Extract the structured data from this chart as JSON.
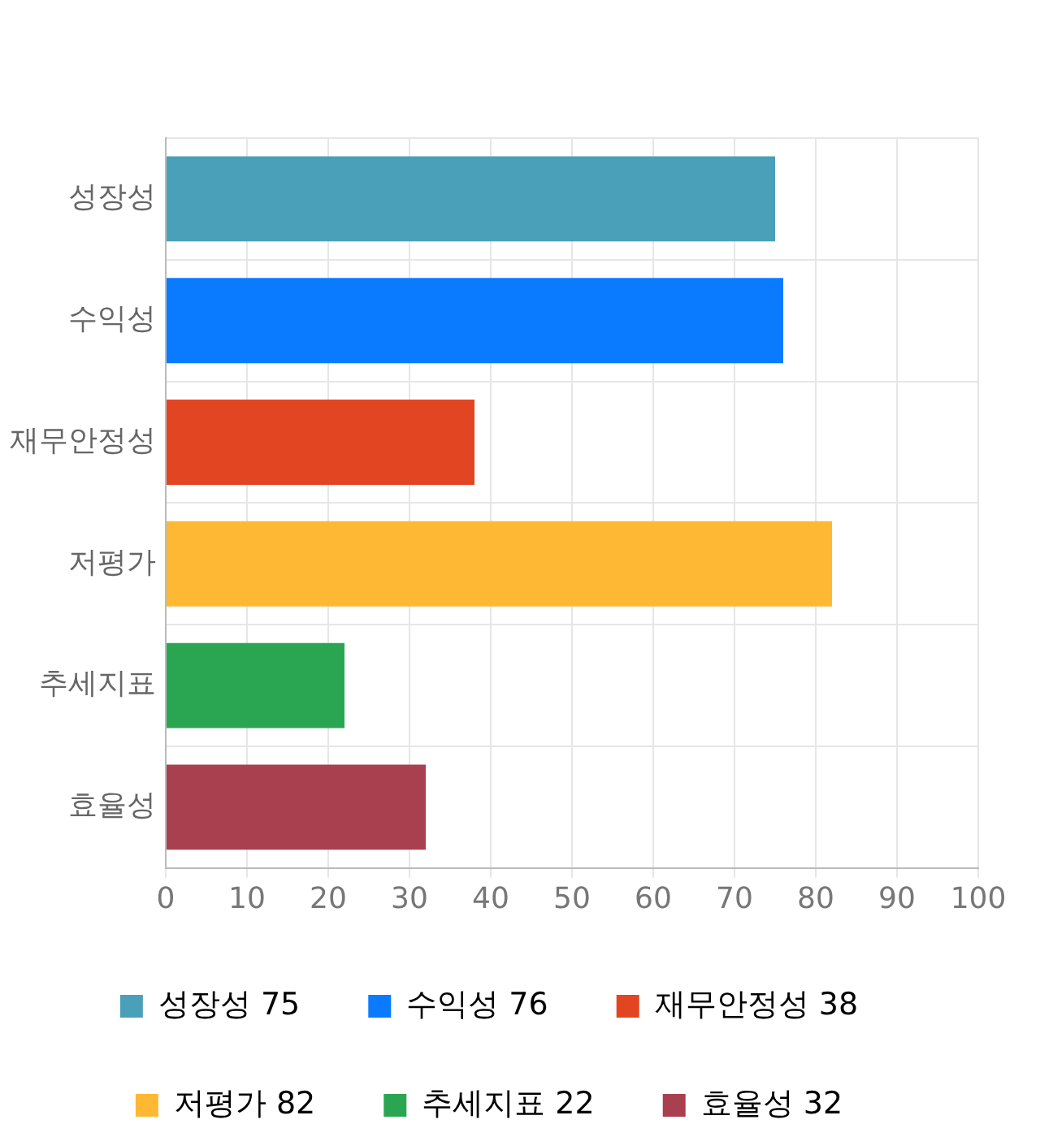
{
  "chart_data": {
    "type": "bar",
    "orientation": "horizontal",
    "stacked": true,
    "categories": [
      "성장성",
      "수익성",
      "재무안정성",
      "저평가",
      "추세지표",
      "효율성"
    ],
    "series": [
      {
        "name": "성장성 75",
        "color": "#4aa0b8",
        "values": [
          75,
          null,
          null,
          null,
          null,
          null
        ]
      },
      {
        "name": "수익성 76",
        "color": "#0a7bff",
        "values": [
          null,
          76,
          null,
          null,
          null,
          null
        ]
      },
      {
        "name": "재무안정성 38",
        "color": "#e24522",
        "values": [
          null,
          null,
          38,
          null,
          null,
          null
        ]
      },
      {
        "name": "저평가 82",
        "color": "#ffb833",
        "values": [
          null,
          null,
          null,
          82,
          null,
          null
        ]
      },
      {
        "name": "추세지표 22",
        "color": "#2aa653",
        "values": [
          null,
          null,
          null,
          null,
          22,
          null
        ]
      },
      {
        "name": "효율성 32",
        "color": "#a8404f",
        "values": [
          null,
          null,
          null,
          null,
          null,
          32
        ]
      }
    ],
    "xlim": [
      0,
      100
    ],
    "xticks": [
      0,
      10,
      20,
      30,
      40,
      50,
      60,
      70,
      80,
      90,
      100
    ],
    "grid": true,
    "legend": "bottom"
  }
}
